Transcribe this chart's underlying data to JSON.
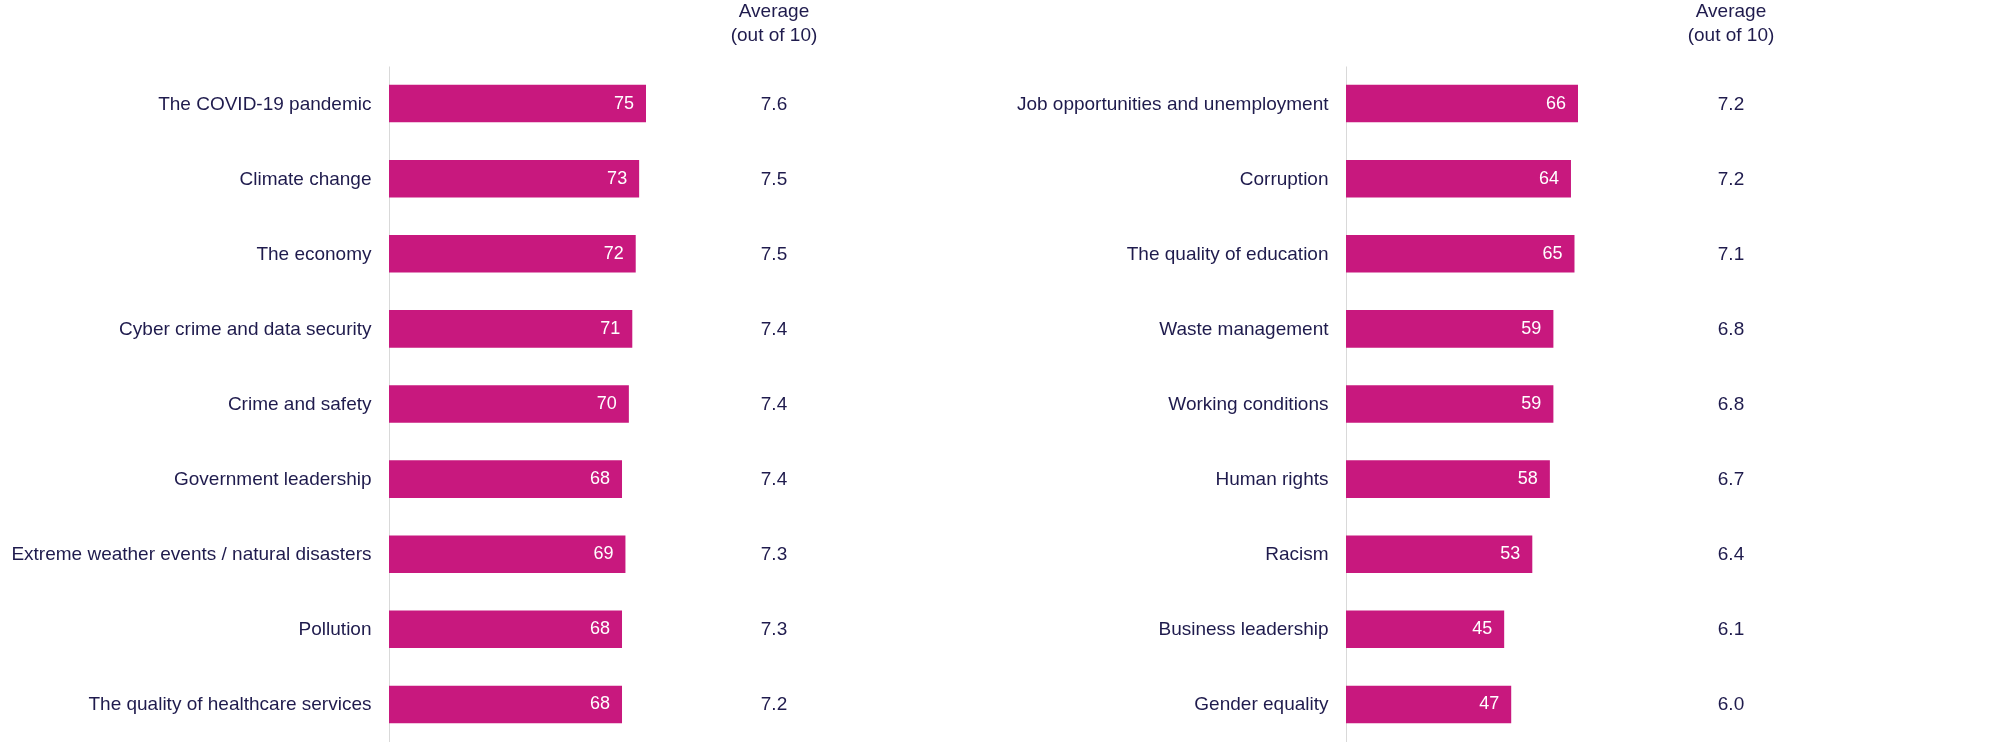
{
  "chart_data": [
    {
      "type": "bar",
      "orientation": "horizontal",
      "categories": [
        "The COVID-19 pandemic",
        "Climate change",
        "The economy",
        "Cyber crime and data security",
        "Crime and safety",
        "Government leadership",
        "Extreme weather events / natural disasters",
        "Pollution",
        "The quality of healthcare services"
      ],
      "values": [
        75,
        73,
        72,
        71,
        70,
        68,
        69,
        68,
        68
      ],
      "color": "#c8187e",
      "data_labels": true,
      "annotations": [
        "Average\n(out of 10)",
        "7.6",
        "7.5",
        "7.5",
        "7.4",
        "7.4",
        "7.4",
        "7.3",
        "7.3",
        "7.2"
      ]
    },
    {
      "type": "bar",
      "orientation": "horizontal",
      "categories": [
        "Job opportunities and unemployment",
        "Corruption",
        "The quality of education",
        "Waste management",
        "Working conditions",
        "Human rights",
        "Racism",
        "Business leadership",
        "Gender equality"
      ],
      "values": [
        66,
        64,
        65,
        59,
        59,
        58,
        53,
        45,
        47
      ],
      "color": "#c8187e",
      "data_labels": true,
      "annotations": [
        "Average\n(out of 10)",
        "7.2",
        "7.2",
        "7.1",
        "6.8",
        "6.8",
        "6.7",
        "6.4",
        "6.1",
        "6.0"
      ]
    }
  ]
}
